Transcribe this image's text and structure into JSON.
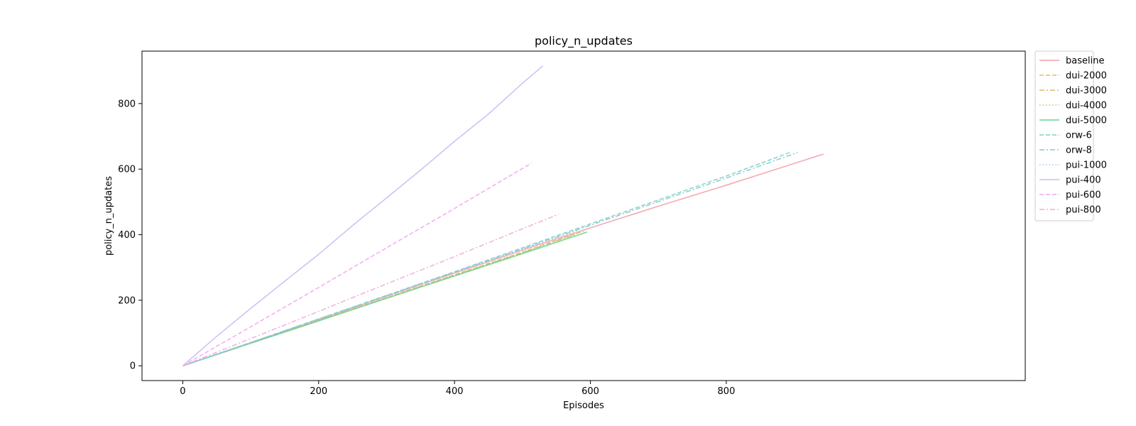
{
  "chart_data": {
    "type": "line",
    "title": "policy_n_updates",
    "xlabel": "Episodes",
    "ylabel": "policy_n_updates",
    "xlim": [
      -60,
      1240
    ],
    "ylim": [
      -45,
      960
    ],
    "xticks": [
      0,
      200,
      400,
      600,
      800
    ],
    "yticks": [
      0,
      200,
      400,
      600,
      800
    ],
    "grid": false,
    "legend_position": "outside-right",
    "series": [
      {
        "name": "baseline",
        "color": "#f4a0aa",
        "dash": "solid",
        "x": [
          0,
          100,
          200,
          300,
          400,
          500,
          600,
          700,
          800,
          943
        ],
        "y": [
          0,
          70,
          141,
          212,
          283,
          353,
          421,
          487,
          551,
          646
        ]
      },
      {
        "name": "dui-2000",
        "color": "#e9b96e",
        "dash": "dashed",
        "x": [
          0,
          100,
          200,
          300,
          400,
          500,
          585
        ],
        "y": [
          0,
          69,
          139,
          208,
          278,
          347,
          408
        ]
      },
      {
        "name": "dui-3000",
        "color": "#d4bd6a",
        "dash": "dashdot",
        "x": [
          0,
          100,
          200,
          300,
          400,
          500,
          580
        ],
        "y": [
          0,
          69,
          138,
          207,
          276,
          345,
          402
        ]
      },
      {
        "name": "dui-4000",
        "color": "#b5c27a",
        "dash": "dotted",
        "x": [
          0,
          100,
          200,
          300,
          400,
          500,
          590
        ],
        "y": [
          0,
          69,
          138,
          207,
          277,
          346,
          410
        ]
      },
      {
        "name": "dui-5000",
        "color": "#6ed18c",
        "dash": "solid",
        "x": [
          0,
          100,
          200,
          300,
          400,
          500,
          595
        ],
        "y": [
          0,
          69,
          137,
          206,
          274,
          342,
          408
        ]
      },
      {
        "name": "orw-6",
        "color": "#7fd1c4",
        "dash": "dashed",
        "x": [
          0,
          100,
          200,
          300,
          400,
          500,
          600,
          700,
          800,
          895
        ],
        "y": [
          0,
          71,
          143,
          215,
          287,
          360,
          433,
          506,
          579,
          652
        ]
      },
      {
        "name": "orw-8",
        "color": "#86c9d1",
        "dash": "dashdot",
        "x": [
          0,
          100,
          200,
          300,
          400,
          500,
          600,
          700,
          800,
          905
        ],
        "y": [
          0,
          71,
          143,
          214,
          286,
          357,
          429,
          501,
          573,
          651
        ]
      },
      {
        "name": "pui-1000",
        "color": "#a3bff2",
        "dash": "dotted",
        "x": [
          0,
          100,
          200,
          300,
          400,
          500,
          580
        ],
        "y": [
          0,
          71,
          142,
          213,
          284,
          355,
          412
        ]
      },
      {
        "name": "pui-400",
        "color": "#c7bdf5",
        "dash": "solid",
        "x": [
          0,
          50,
          100,
          150,
          200,
          250,
          300,
          350,
          400,
          450,
          500,
          530
        ],
        "y": [
          0,
          90,
          175,
          258,
          340,
          428,
          512,
          597,
          685,
          768,
          862,
          915
        ]
      },
      {
        "name": "pui-600",
        "color": "#f2a8ee",
        "dash": "dashed",
        "x": [
          0,
          100,
          200,
          300,
          400,
          513
        ],
        "y": [
          0,
          119,
          239,
          360,
          480,
          618
        ]
      },
      {
        "name": "pui-800",
        "color": "#f4a8dd",
        "dash": "dashdot",
        "x": [
          0,
          100,
          200,
          300,
          400,
          500,
          553
        ],
        "y": [
          0,
          83,
          166,
          250,
          333,
          418,
          462
        ]
      }
    ]
  }
}
